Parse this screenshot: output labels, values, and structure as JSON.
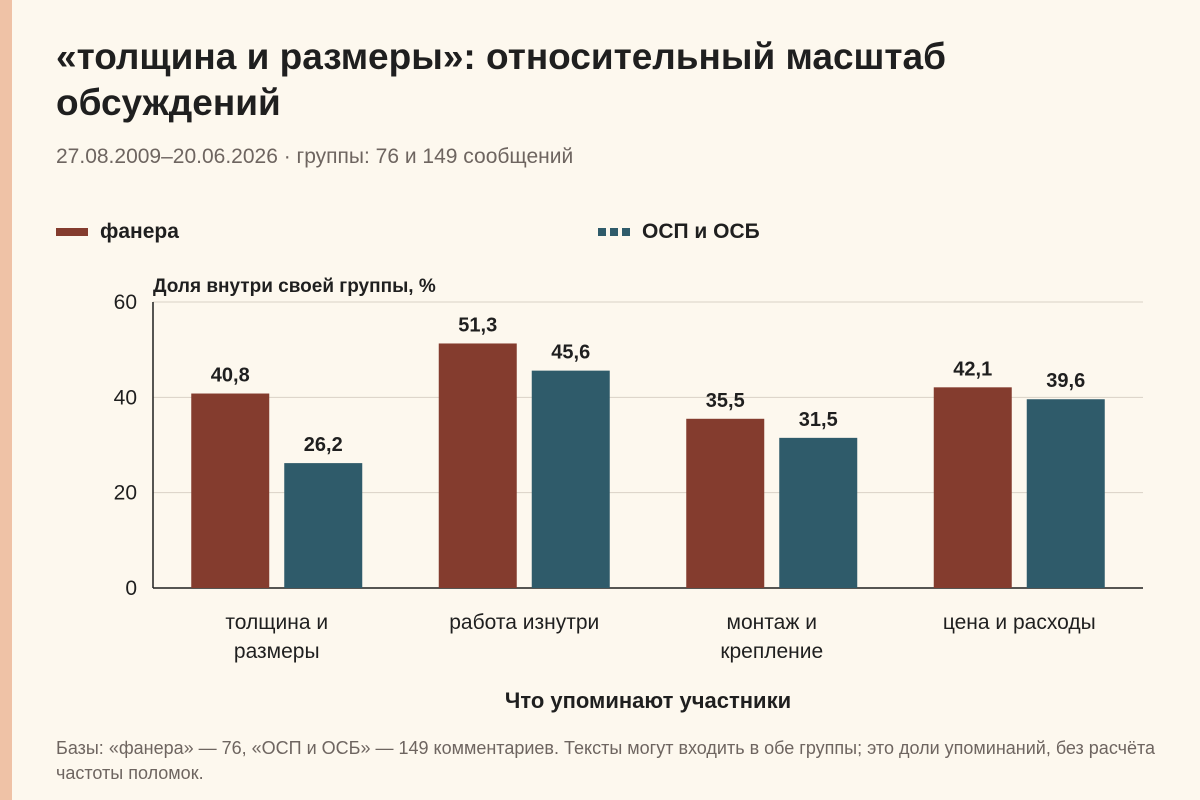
{
  "header": {
    "title": "«толщина и размеры»: относительный масштаб обсуждений",
    "subtitle": "27.08.2009–20.06.2026 · группы: 76 и 149 сообщений"
  },
  "legend": [
    {
      "name": "фанера",
      "color": "#843c2e"
    },
    {
      "name": "ОСП и ОСБ",
      "color": "#2f5b6a"
    }
  ],
  "footnote": "Базы: «фанера» — 76, «ОСП и ОСБ» — 149 комментариев. Тексты могут входить в обе группы; это доли упоминаний, без расчёта частоты поломок.",
  "chart_data": {
    "type": "bar",
    "ylabel": "Доля внутри своей группы, %",
    "xlabel": "Что упоминают участники",
    "ylim": [
      0,
      60
    ],
    "yticks": [
      "0",
      "20",
      "40",
      "60"
    ],
    "grid": true,
    "categories": [
      [
        "толщина и",
        "размеры"
      ],
      [
        "работа изнутри"
      ],
      [
        "монтаж и",
        "крепление"
      ],
      [
        "цена и расходы"
      ]
    ],
    "series": [
      {
        "name": "фанера",
        "color": "#843c2e",
        "values": [
          40.8,
          51.3,
          35.5,
          42.1
        ],
        "labels": [
          "40,8",
          "51,3",
          "35,5",
          "42,1"
        ]
      },
      {
        "name": "ОСП и ОСБ",
        "color": "#2f5b6a",
        "values": [
          26.2,
          45.6,
          31.5,
          39.6
        ],
        "labels": [
          "26,2",
          "45,6",
          "31,5",
          "39,6"
        ]
      }
    ]
  }
}
